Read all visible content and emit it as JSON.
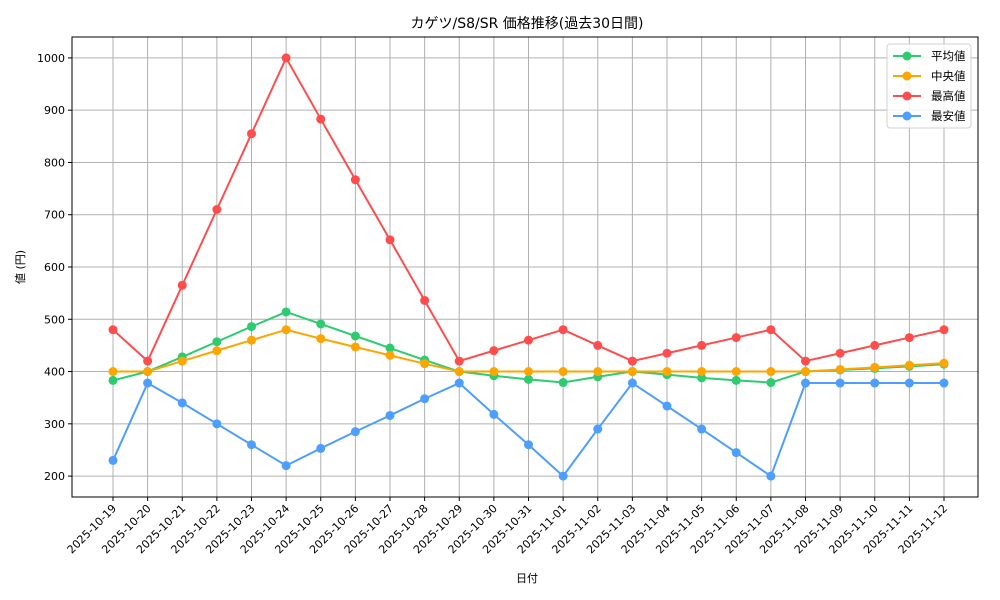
{
  "chart_data": {
    "type": "line",
    "title": "カゲツ/S8/SR 価格推移(過去30日間)",
    "xlabel": "日付",
    "ylabel": "値 (円)",
    "ylim": [
      160,
      1040
    ],
    "yticks": [
      200,
      300,
      400,
      500,
      600,
      700,
      800,
      900,
      1000
    ],
    "grid": true,
    "legend_position": "upper right",
    "categories": [
      "2025-10-19",
      "2025-10-20",
      "2025-10-21",
      "2025-10-22",
      "2025-10-23",
      "2025-10-24",
      "2025-10-25",
      "2025-10-26",
      "2025-10-27",
      "2025-10-28",
      "2025-10-29",
      "2025-10-30",
      "2025-10-31",
      "2025-11-01",
      "2025-11-02",
      "2025-11-03",
      "2025-11-04",
      "2025-11-05",
      "2025-11-06",
      "2025-11-07",
      "2025-11-08",
      "2025-11-09",
      "2025-11-10",
      "2025-11-11",
      "2025-11-12"
    ],
    "series": [
      {
        "name": "平均値",
        "color": "#2ecc71",
        "values": [
          383,
          400,
          428,
          457,
          486,
          514,
          491,
          468,
          445,
          422,
          400,
          392,
          385,
          379,
          390,
          400,
          394,
          388,
          383,
          379,
          400,
          403,
          406,
          410,
          414
        ]
      },
      {
        "name": "中央値",
        "color": "#ffa500",
        "values": [
          400,
          400,
          420,
          440,
          460,
          480,
          463,
          447,
          431,
          415,
          400,
          400,
          400,
          400,
          400,
          400,
          400,
          400,
          400,
          400,
          400,
          404,
          408,
          412,
          416
        ]
      },
      {
        "name": "最高値",
        "color": "#ff4d4d",
        "values": [
          480,
          420,
          565,
          710,
          855,
          1000,
          883,
          767,
          652,
          536,
          420,
          440,
          460,
          480,
          450,
          420,
          435,
          450,
          465,
          480,
          420,
          435,
          450,
          465,
          480
        ]
      },
      {
        "name": "最安値",
        "color": "#4d9eff",
        "values": [
          230,
          378,
          340,
          300,
          260,
          220,
          253,
          285,
          316,
          348,
          378,
          318,
          260,
          200,
          290,
          378,
          334,
          290,
          245,
          200,
          378,
          378,
          378,
          378,
          378
        ]
      }
    ]
  }
}
